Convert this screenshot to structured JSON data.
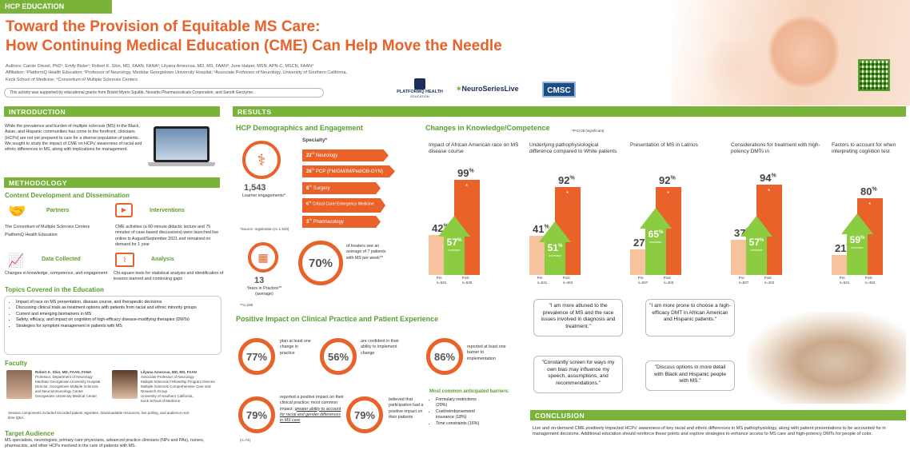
{
  "header": {
    "tag": "HCP EDUCATION",
    "title_line1": "Toward the Provision of Equitable MS Care:",
    "title_line2": "How Continuing Medical Education (CME) Can Help Move the Needle",
    "authors": "Authors: Carole Drexel, PhD¹; Emily Bixler¹; Robert K. Shin, MD, FAAN, FANA²; Lilyana Amezcua, MD, MS, FAAN³; June Halper, MSN, APN-C, MSCN, FAAN⁴",
    "affiliation1": "Affiliation: ¹PlatformQ Health Education; ²Professor of Neurology, Medstar Georgetown University Hospital; ³Associate Professor of Neurology, University of Southern California,",
    "affiliation2": "Keck School of Medicine; ⁴Consortium of Multiple Sclerosis Centers",
    "support": "This activity was supported by educational grants from Bristol Myers Squibb, Novartis Pharmaceuticals Corporation, and Sanofi Genzyme.",
    "logos": [
      "PLATFORMQ HEALTH",
      "EDUCATION",
      "NeuroSeriesLive",
      "CMSC"
    ]
  },
  "intro": {
    "heading": "INTRODUCTION",
    "text": "While the prevalence and burden of multiple sclerosis (MS) in the Black, Asian, and Hispanic communities has come to the forefront, clinicians (HCPs) are not yet prepared to care for a diverse population of patients. We sought to study the impact of CME on HCPs' awareness of racial and ethnic differences in MS, along with implications for management."
  },
  "methodology": {
    "heading": "METHODOLOGY",
    "content_heading": "Content Development and Dissemination",
    "partners_title": "Partners",
    "partners_text1": "The Consortium of Multiple Sclerosis Centers",
    "partners_text2": "PlatformQ Health Education",
    "interventions_title": "Interventions",
    "interventions_text": "CME activities (a 60-minute didactic lecture and 75 minutes of case-based discussions) were launched live online in August/September 2021 and remained on demand for 1 year",
    "data_title": "Data Collected",
    "data_text": "Changes in knowledge, competence, and engagement",
    "analysis_title": "Analysis",
    "analysis_text": "Chi-square tests for statistical analysis and identification of lessons learned and continuing gaps",
    "topics_heading": "Topics Covered in the Education",
    "topics": [
      "Impact of race on MS presentation, disease course, and therapeutic decisions",
      "Discussing clinical trials as treatment options with patients from racial and ethnic minority groups",
      "Current and emerging biomarkers in MS",
      "Safety, efficacy, and impact on cognition of high-efficacy disease-modifying therapies (DMTs)",
      "Strategies for symptom management in patients with MS"
    ],
    "faculty_heading": "Faculty",
    "faculty1": [
      "Robert K. Shin, MD, FAAN, FANA",
      "Professor, Department of Neurology",
      "MedStar Georgetown University Hospital",
      "Director, Georgetown Multiple Sclerosis",
      "and Neuroimmunology Center",
      "Georgetown University Medical Center"
    ],
    "faculty2": [
      "Lilyana Amezcua, MD, MS, FAAN",
      "Associate Professor of Neurology",
      "Multiple Sclerosis Fellowship Program Director",
      "Multiple Sclerosis Comprehensive Care and",
      "Research Group",
      "University of Southern California,",
      "Keck School of Medicine"
    ],
    "session_note": "Session components included recorded patient vignettes, downloadable resources, live polling, and audience real-time Q&A.",
    "audience_heading": "Target Audience",
    "audience_text": "MS specialists, neurologists, primary care physicians, advanced practice clinicians (NPs and PAs), nurses, pharmacists, and other HCPs involved in the care of patients with MS."
  },
  "results": {
    "heading": "RESULTS",
    "demo_heading": "HCP Demographics and Engagement",
    "learners_value": "1,543",
    "learners_label": "Learner engagements*",
    "specialty_label": "Specialty*",
    "specialties": [
      {
        "pct": "22",
        "name": "Neurology"
      },
      {
        "pct": "26",
        "name": "PCP (FM/GM/IM/Ped/OB-GYN)"
      },
      {
        "pct": "8",
        "name": "Surgery"
      },
      {
        "pct": "6",
        "name": "Critical Care/ Emergency Medicine"
      },
      {
        "pct": "3",
        "name": "Pharmacology"
      }
    ],
    "source_note": "*Source: registration (n=1,543)",
    "years_value": "13",
    "years_label": "Years in Practice** (average)",
    "treaters_pct": "70%",
    "treaters_text": "of treaters see an average of 7 patients with MS per week**",
    "n_note": "**n=186",
    "knowledge_heading": "Changes in Knowledge/Competence",
    "sig_note": "*P<0.05 (significant)",
    "increase_label": "increase",
    "pre_label": "Pre",
    "post_label": "Post"
  },
  "chart_data": {
    "type": "bar",
    "title": "Changes in Knowledge/Competence",
    "categories": [
      "Impact of African American race on MS disease course",
      "Underlying pathophysiological difference compared to White patients",
      "Presentation of MS in Latinos",
      "Considerations for treatment with high-potency DMTs in",
      "Factors to account for when interpreting cognition test"
    ],
    "series": [
      {
        "name": "Pre",
        "values": [
          42,
          41,
          27,
          37,
          21
        ]
      },
      {
        "name": "Post",
        "values": [
          99,
          92,
          92,
          94,
          80
        ]
      }
    ],
    "increase": [
      57,
      51,
      65,
      57,
      59
    ],
    "pre_n": [
      "n=631",
      "n=531",
      "n=507",
      "n=507",
      "n=531"
    ],
    "post_n": [
      "n=635",
      "n=463",
      "n=403",
      "n=402",
      "n=463"
    ],
    "ylim": [
      0,
      100
    ]
  },
  "impact": {
    "heading": "Positive Impact on Clinical Practice and Patient Experience",
    "items": [
      {
        "pct": "77%",
        "text": "plan at least one change in practice"
      },
      {
        "pct": "56%",
        "text": "are confident in their ability to implement change"
      },
      {
        "pct": "86%",
        "text": "reported at least one barrier to implementation"
      },
      {
        "pct": "79%",
        "text": "reported a positive impact on their clinical practice; most common impact:"
      },
      {
        "pct": "79%",
        "text": "believed that participation had a positive impact on their patients"
      }
    ],
    "impact_emph": "greater ability to account for racial and gender differences in MS care",
    "n_note": "(n=74)",
    "barriers_heading": "Most common anticipated barriers:",
    "barriers": [
      "Formulary restrictions (20%)",
      "Cost/reimbursement/ insurance (18%)",
      "Time constraints (16%)"
    ]
  },
  "quotes": [
    "\"I am more attuned to the prevalence of MS and the race issues involved in diagnosis and treatment.\"",
    "\"I am more prone to choose a high-efficacy DMT in African American and Hispanic patients.\"",
    "\"Constantly screen for ways my own bias may influence my speech, assumptions, and recommendations.\"",
    "\"Discuss options in more detail with Black and Hispanic people with MS.\""
  ],
  "conclusion": {
    "heading": "CONCLUSION",
    "text": "Live and on-demand CME positively impacted HCPs' awareness of key racial and ethnic differences in MS pathophysiology, along with patient presentations to be accounted for in management decisions. Additional education should reinforce these points and explore strategies to enhance access to MS care and high-potency DMTs for people of color."
  },
  "colors": {
    "accent_green": "#7ab33a",
    "accent_orange": "#e8622a",
    "pre_bar": "#f7c29e",
    "increase_arrow": "#8ccc40"
  }
}
